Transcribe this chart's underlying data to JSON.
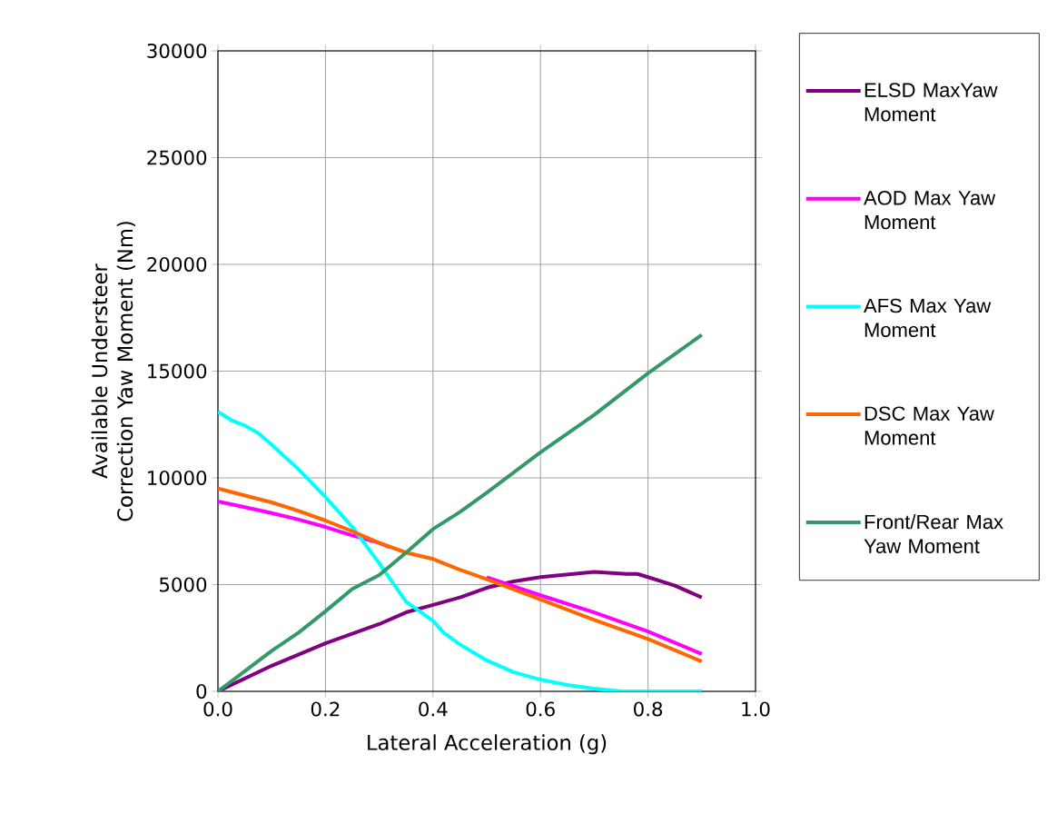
{
  "chart_data": {
    "type": "line",
    "xlabel": "Lateral Acceleration (g)",
    "ylabel": "Available Understeer Correction Yaw Moment (Nm)",
    "xlim": [
      0,
      1
    ],
    "xticks": [
      {
        "value": 0,
        "label": "0.0"
      },
      {
        "value": 0.2,
        "label": "0.2"
      },
      {
        "value": 0.4,
        "label": "0.4"
      },
      {
        "value": 0.6,
        "label": "0.6"
      },
      {
        "value": 0.8,
        "label": "0.8"
      },
      {
        "value": 1,
        "label": "1.0"
      }
    ],
    "ylim": [
      0,
      30000
    ],
    "yticks": [
      0,
      5000,
      10000,
      15000,
      20000,
      25000,
      30000
    ],
    "grid": true,
    "legend": "right",
    "marker": "none",
    "line_style": "solid",
    "series": [
      {
        "name": "ELSD MaxYaw Moment",
        "color": "#800080",
        "x": [
          0,
          0.1,
          0.2,
          0.3,
          0.35,
          0.4,
          0.45,
          0.5,
          0.55,
          0.6,
          0.7,
          0.76,
          0.78,
          0.8,
          0.85,
          0.9
        ],
        "values": [
          0,
          1200,
          2250,
          3150,
          3700,
          4050,
          4400,
          4850,
          5150,
          5350,
          5600,
          5500,
          5500,
          5350,
          4950,
          4400
        ]
      },
      {
        "name": "AOD Max Yaw Moment",
        "color": "#ff00ff",
        "x": [
          0,
          0.1,
          0.15,
          0.2,
          0.25,
          0.3,
          0.32,
          0.4,
          0.5,
          0.6,
          0.7,
          0.8,
          0.9
        ],
        "values": [
          8900,
          8350,
          8050,
          7700,
          7300,
          6950,
          6750,
          null,
          5350,
          4500,
          3700,
          2800,
          1750
        ]
      },
      {
        "name": "AFS Max Yaw Moment",
        "color": "#00ffff",
        "x": [
          0,
          0.025,
          0.05,
          0.075,
          0.1,
          0.15,
          0.2,
          0.25,
          0.3,
          0.35,
          0.4,
          0.42,
          0.45,
          0.5,
          0.55,
          0.6,
          0.65,
          0.7,
          0.75,
          0.9
        ],
        "values": [
          13100,
          12700,
          12450,
          12100,
          11550,
          10400,
          9100,
          7700,
          6000,
          4200,
          3300,
          2750,
          2200,
          1450,
          900,
          550,
          300,
          130,
          0,
          0
        ]
      },
      {
        "name": "DSC Max Yaw Moment",
        "color": "#ff6600",
        "x": [
          0,
          0.1,
          0.15,
          0.2,
          0.25,
          0.3,
          0.35,
          0.4,
          0.45,
          0.5,
          0.6,
          0.7,
          0.8,
          0.9
        ],
        "values": [
          9500,
          8850,
          8450,
          8000,
          7500,
          6950,
          6500,
          6200,
          5700,
          5250,
          4300,
          3350,
          2450,
          1400
        ]
      },
      {
        "name": "Front/Rear Max Yaw Moment",
        "color": "#339966",
        "x": [
          0,
          0.1,
          0.15,
          0.2,
          0.25,
          0.3,
          0.35,
          0.4,
          0.45,
          0.5,
          0.6,
          0.7,
          0.8,
          0.9
        ],
        "values": [
          0,
          1900,
          2750,
          3750,
          4800,
          5450,
          6500,
          7600,
          8400,
          9300,
          11200,
          12950,
          14900,
          16700
        ]
      }
    ]
  }
}
